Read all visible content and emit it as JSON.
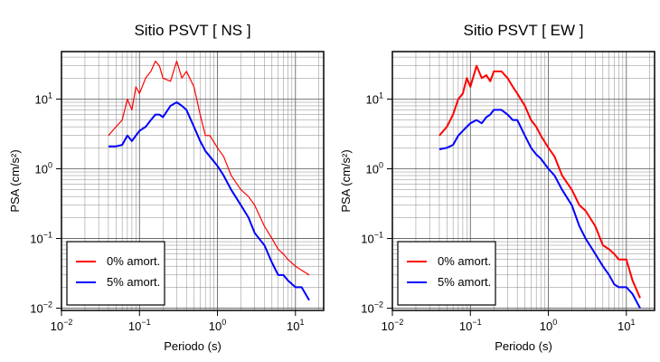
{
  "chart_data": [
    {
      "type": "line",
      "title": "Sitio PSVT [ NS ]",
      "xlabel": "Periodo (s)",
      "ylabel": "PSA (cm/s²)",
      "log_x": true,
      "log_y": true,
      "grid": true,
      "minor_grid": true,
      "legend": "lower left",
      "xlim": [
        0.01,
        23
      ],
      "ylim": [
        0.0093,
        48
      ],
      "xticks": [
        {
          "value": 0.01,
          "label": "10",
          "exponent": "−2"
        },
        {
          "value": 0.1,
          "label": "10",
          "exponent": "−1"
        },
        {
          "value": 1,
          "label": "10",
          "exponent": "0"
        },
        {
          "value": 10,
          "label": "10",
          "exponent": "1"
        }
      ],
      "yticks": [
        {
          "value": 0.01,
          "label": "10",
          "exponent": "−2"
        },
        {
          "value": 0.1,
          "label": "10",
          "exponent": "−1"
        },
        {
          "value": 1,
          "label": "10",
          "exponent": "0"
        },
        {
          "value": 10,
          "label": "10",
          "exponent": "1"
        }
      ],
      "x": [
        0.04,
        0.05,
        0.06,
        0.07,
        0.08,
        0.09,
        0.1,
        0.12,
        0.14,
        0.16,
        0.18,
        0.2,
        0.25,
        0.3,
        0.35,
        0.4,
        0.5,
        0.6,
        0.7,
        0.8,
        1,
        1.2,
        1.5,
        2,
        2.5,
        3,
        4,
        5,
        6,
        7,
        8,
        10,
        12,
        15
      ],
      "series": [
        {
          "name": "0% amort.",
          "color": "#ff0000",
          "width": 1.2,
          "values": [
            3,
            4,
            5,
            10,
            7,
            15,
            12,
            20,
            25,
            35,
            30,
            20,
            18,
            35,
            20,
            25,
            15,
            6,
            3,
            3,
            2,
            1.5,
            0.8,
            0.5,
            0.4,
            0.3,
            0.15,
            0.1,
            0.07,
            0.06,
            0.05,
            0.04,
            0.035,
            0.03
          ]
        },
        {
          "name": "5% amort.",
          "color": "#0000ff",
          "width": 2,
          "values": [
            2.1,
            2.1,
            2.2,
            3,
            2.5,
            3,
            3.5,
            4,
            5,
            6,
            6,
            5.5,
            8,
            9,
            8,
            7,
            4,
            2.5,
            1.8,
            1.5,
            1.1,
            0.8,
            0.5,
            0.3,
            0.2,
            0.12,
            0.08,
            0.045,
            0.03,
            0.03,
            0.025,
            0.02,
            0.02,
            0.013
          ]
        }
      ]
    },
    {
      "type": "line",
      "title": "Sitio PSVT [ EW ]",
      "xlabel": "Periodo (s)",
      "ylabel": "PSA (cm/s²)",
      "log_x": true,
      "log_y": true,
      "grid": true,
      "minor_grid": true,
      "legend": "lower left",
      "xlim": [
        0.01,
        23
      ],
      "ylim": [
        0.0093,
        48
      ],
      "xticks": [
        {
          "value": 0.01,
          "label": "10",
          "exponent": "−2"
        },
        {
          "value": 0.1,
          "label": "10",
          "exponent": "−1"
        },
        {
          "value": 1,
          "label": "10",
          "exponent": "0"
        },
        {
          "value": 10,
          "label": "10",
          "exponent": "1"
        }
      ],
      "yticks": [
        {
          "value": 0.01,
          "label": "10",
          "exponent": "−2"
        },
        {
          "value": 0.1,
          "label": "10",
          "exponent": "−1"
        },
        {
          "value": 1,
          "label": "10",
          "exponent": "0"
        },
        {
          "value": 10,
          "label": "10",
          "exponent": "1"
        }
      ],
      "x": [
        0.04,
        0.05,
        0.06,
        0.07,
        0.08,
        0.09,
        0.1,
        0.12,
        0.14,
        0.16,
        0.18,
        0.2,
        0.25,
        0.3,
        0.35,
        0.4,
        0.5,
        0.6,
        0.7,
        0.8,
        1,
        1.2,
        1.5,
        2,
        2.5,
        3,
        4,
        5,
        6,
        7,
        8,
        10,
        12,
        15
      ],
      "series": [
        {
          "name": "0% amort.",
          "color": "#ff0000",
          "width": 2,
          "values": [
            3,
            4,
            6,
            10,
            12,
            20,
            15,
            30,
            20,
            22,
            18,
            25,
            25,
            20,
            15,
            12,
            8,
            5,
            4,
            3,
            2,
            1.5,
            0.8,
            0.5,
            0.3,
            0.25,
            0.15,
            0.08,
            0.07,
            0.06,
            0.05,
            0.05,
            0.025,
            0.014
          ]
        },
        {
          "name": "5% amort.",
          "color": "#0000ff",
          "width": 2,
          "values": [
            1.9,
            2,
            2.2,
            3,
            3.5,
            4,
            4.5,
            5,
            4.5,
            5.5,
            6,
            7,
            7,
            6,
            5,
            5,
            3,
            2,
            1.6,
            1.4,
            1,
            0.8,
            0.5,
            0.3,
            0.15,
            0.1,
            0.06,
            0.04,
            0.03,
            0.022,
            0.02,
            0.02,
            0.016,
            0.01
          ]
        }
      ]
    }
  ]
}
